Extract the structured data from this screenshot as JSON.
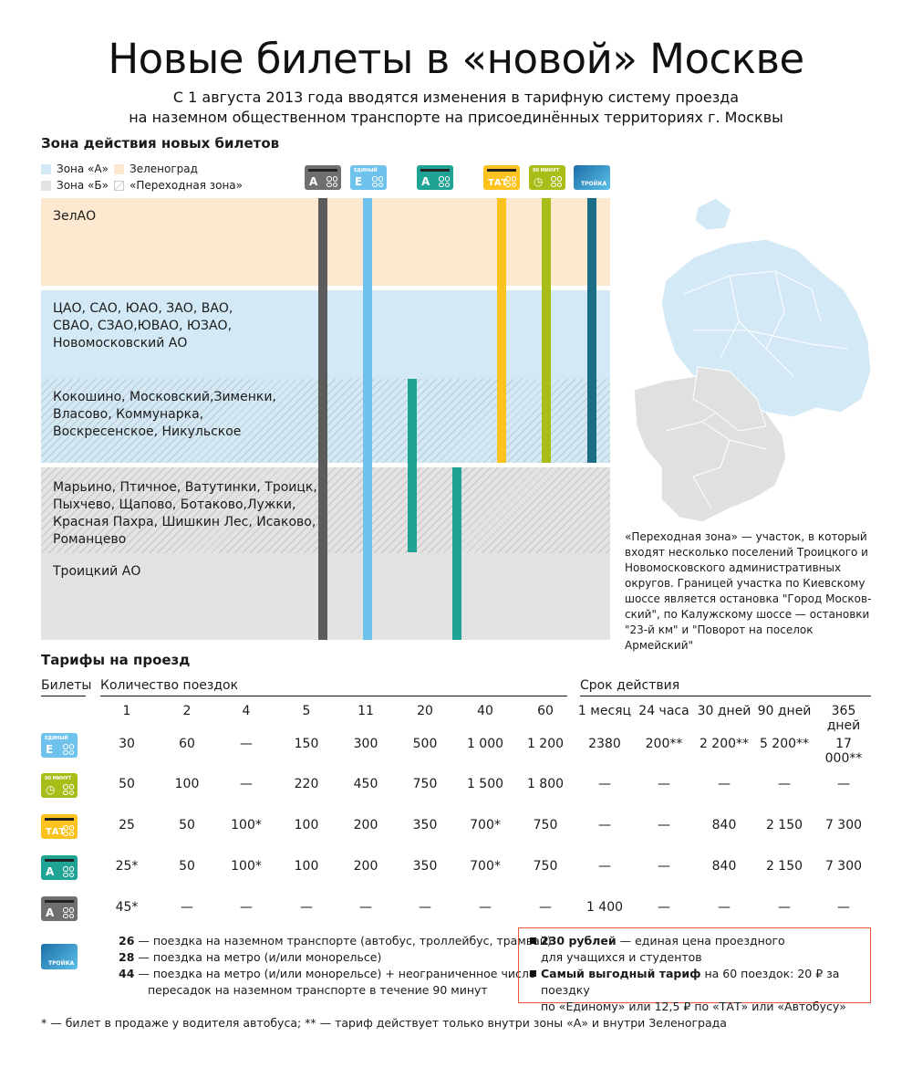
{
  "title": "Новые билеты в «новой» Москве",
  "subtitle": [
    "С 1 августа 2013 года вводятся изменения в тарифную систему проезда",
    "на наземном общественном транспорте на присоединённых территориях г. Москвы"
  ],
  "zone_section": {
    "heading": "Зона действия новых билетов",
    "legend": [
      {
        "label": "Зона «А»",
        "color": "#d3e9f5"
      },
      {
        "label": "Зеленоград",
        "color": "#fde9cf"
      },
      {
        "label": "Зона «Б»",
        "color": "#e3e3e3"
      },
      {
        "label": "«Переходная зона»",
        "color": "hatch"
      }
    ],
    "bands": [
      {
        "text": "ЗелАО",
        "color": "#fde9cf"
      },
      {
        "text": "ЦАО, САО, ЮАО, ЗАО, ВАО,\nСВАО, СЗАО,ЮВАО, ЮЗАО,\nНовомосковский АО",
        "color": "#d3e9f5"
      },
      {
        "text": "Кокошино, Московский,Зименки,\nВласово, Коммунарка,\nВоскресенское, Никульское",
        "color": "#d3e9f5"
      },
      {
        "text": "Марьино, Птичное, Ватутинки, Троицк,\nПыхчево, Щапово, Ботаково,Лужки,\nКрасная Пахра, Шишкин Лес, Исаково,\nРоманцево",
        "color": "#e3e3e3"
      },
      {
        "text": "Троицкий АО",
        "color": "#e3e3e3"
      }
    ],
    "note": "«Переходная зона» — участок, в который входят несколько поселений Троицкого и Новомосковского административных округов. Границей участка по Киевскому шоссе является остановка \"Город Москов-ский\", по Калужскому шоссе — остановки \"23-й км\" и \"Поворот на поселок Армейский\""
  },
  "tickets": {
    "gray": {
      "letter": "A",
      "color": "#6f6f6f"
    },
    "edinyi": {
      "letter": "E",
      "small": "ЕДИНЫЙ",
      "color": "#6fc2ec"
    },
    "teal": {
      "letter": "A",
      "color": "#1fa394"
    },
    "tat": {
      "letter": "ТАТ",
      "color": "#fcc31e"
    },
    "minut": {
      "letter": "◷",
      "small": "90 МИНУТ",
      "color": "#a8bd18"
    },
    "troika": {
      "letter": "ТРОЙКА",
      "color": "#2b9ad0"
    }
  },
  "tariffs": {
    "heading": "Тарифы на проезд",
    "col_tickets": "Билеты",
    "col_trips": "Количество поездок",
    "col_validity": "Срок действия",
    "trip_counts": [
      "1",
      "2",
      "4",
      "5",
      "11",
      "20",
      "40",
      "60"
    ],
    "validity": [
      "1 месяц",
      "24 часа",
      "30 дней",
      "90 дней",
      "365 дней"
    ],
    "rows": [
      {
        "ticket": "edinyi",
        "values": [
          "30",
          "60",
          "—",
          "150",
          "300",
          "500",
          "1 000",
          "1 200",
          "2380",
          "200**",
          "2 200**",
          "5 200**",
          "17 000**"
        ]
      },
      {
        "ticket": "minut",
        "values": [
          "50",
          "100",
          "—",
          "220",
          "450",
          "750",
          "1 500",
          "1 800",
          "—",
          "—",
          "—",
          "—",
          "—"
        ]
      },
      {
        "ticket": "tat",
        "values": [
          "25",
          "50",
          "100*",
          "100",
          "200",
          "350",
          "700*",
          "750",
          "—",
          "—",
          "840",
          "2 150",
          "7 300"
        ]
      },
      {
        "ticket": "teal",
        "values": [
          "25*",
          "50",
          "100*",
          "100",
          "200",
          "350",
          "700*",
          "750",
          "—",
          "—",
          "840",
          "2 150",
          "7 300"
        ]
      },
      {
        "ticket": "gray",
        "values": [
          "45*",
          "—",
          "—",
          "—",
          "—",
          "—",
          "—",
          "—",
          "1 400",
          "—",
          "—",
          "—",
          "—"
        ]
      }
    ],
    "troika": [
      {
        "num": "26",
        "text": "— поездка на наземном транспорте (автобус, троллейбус, трамвай)"
      },
      {
        "num": "28",
        "text": "— поездка на метро (и/или монорельсе)"
      },
      {
        "num": "44",
        "text": "— поездка на метро (и/или монорельсе) + неограниченное число"
      },
      {
        "num": "",
        "text": "пересадок на наземном транспорте в течение 90 минут"
      }
    ],
    "box": [
      {
        "bold": "230 рублей",
        "text": " — единая цена проездного",
        "line2": "для учащихся и студентов"
      },
      {
        "bold": "Самый выгодный тариф",
        "text": " на 60 поездок: 20 ₽ за поездку",
        "line2": "по «Единому» или 12,5 ₽ по «ТАТ» или «Автобусу»"
      }
    ],
    "footnote": "* — билет в продаже у водителя автобуса; ** — тариф действует только внутри зоны «А» и внутри Зеленограда"
  }
}
